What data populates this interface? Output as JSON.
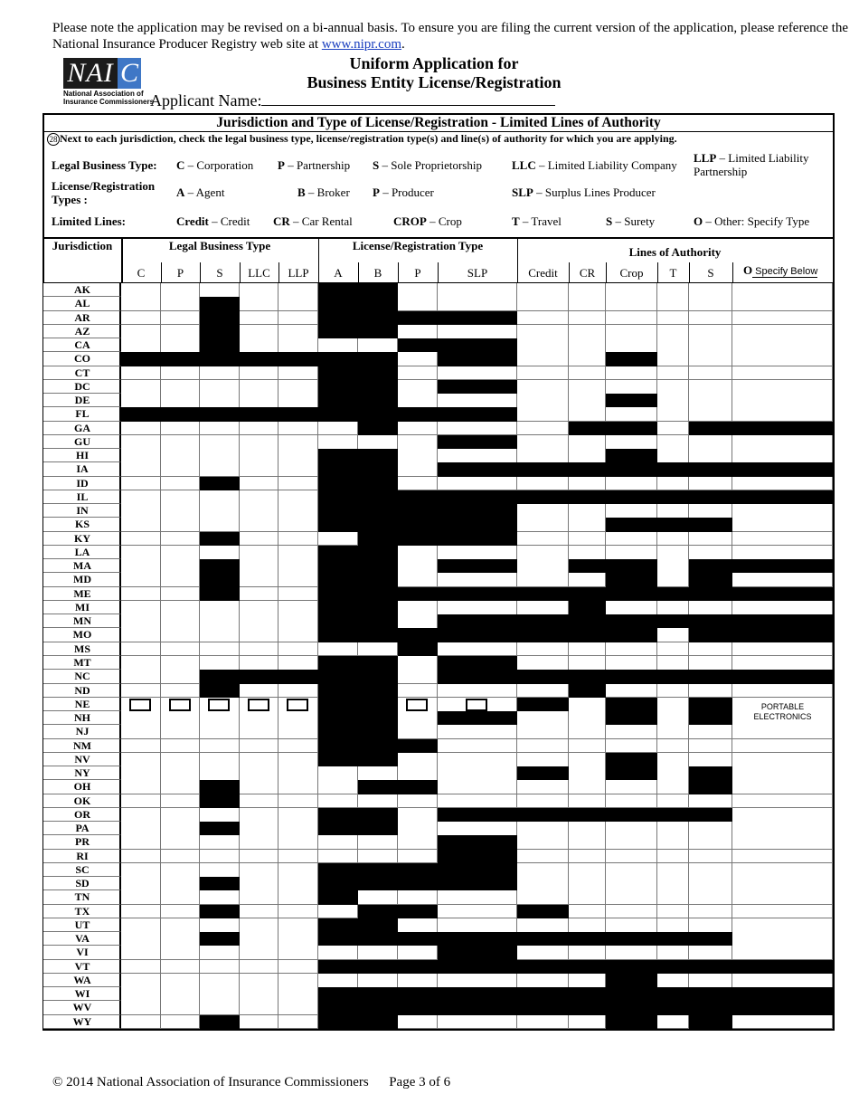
{
  "notice": {
    "text": "Please note the application may be revised on a bi-annual basis. To ensure you are filing the current version of the application, please reference the National Insurance Producer Registry web site at ",
    "link": "www.nipr.com",
    "end": "."
  },
  "logo": {
    "mark_left": "NAI",
    "mark_right": "C",
    "line1": "National Association of",
    "line2": "Insurance Commissioners",
    "colors": {
      "dark": "#1b1b1b",
      "blue": "#3f77c6"
    }
  },
  "header": {
    "title_line1": "Uniform Application for",
    "title_line2": "Business Entity License/Registration",
    "applicant_label": "Applicant Name:"
  },
  "section": {
    "title": "Jurisdiction and Type of License/Registration - Limited Lines of Authority",
    "question_number": "28",
    "instruction": "Next to each jurisdiction, check the legal business type, license/registration type(s) and line(s) of authority for which you are applying."
  },
  "legend": {
    "legal_label": "Legal Business Type:",
    "legal": [
      [
        "C",
        "Corporation"
      ],
      [
        "P",
        "Partnership"
      ],
      [
        "S",
        "Sole Proprietorship"
      ],
      [
        "LLC",
        "Limited Liability Company"
      ],
      [
        "LLP",
        "Limited Liability Partnership"
      ]
    ],
    "license_label": "License/Registration Types :",
    "license": [
      [
        "A",
        "Agent"
      ],
      [
        "B",
        "Broker"
      ],
      [
        "P",
        "Producer"
      ],
      [
        "SLP",
        "Surplus Lines Producer"
      ]
    ],
    "lines_label": "Limited Lines:",
    "lines": [
      [
        "Credit",
        "Credit"
      ],
      [
        "CR",
        "Car Rental"
      ],
      [
        "CROP",
        "Crop"
      ],
      [
        "T",
        "Travel"
      ],
      [
        "S",
        "Surety"
      ],
      [
        "O",
        "Other: Specify Type"
      ]
    ]
  },
  "table": {
    "jurisdiction_header": "Jurisdiction",
    "group_headers": [
      "Legal Business Type",
      "License/Registration Type",
      "Lines of Authority"
    ],
    "columns": [
      "C",
      "P",
      "S",
      "LLC",
      "LLP",
      "A",
      "B",
      "P",
      "SLP",
      "Credit",
      "CR",
      "Crop",
      "T",
      "S",
      "O"
    ],
    "other_note": "Specify Below",
    "ne_nh_other_text": "PORTABLE ELECTRONICS",
    "rows": [
      {
        "j": "AK",
        "blocked": [
          5,
          6
        ]
      },
      {
        "j": "AL",
        "blocked": [
          2,
          5,
          6
        ]
      },
      {
        "j": "AR",
        "blocked": [
          2,
          5,
          6,
          7,
          8
        ]
      },
      {
        "j": "AZ",
        "blocked": [
          2,
          5,
          6
        ]
      },
      {
        "j": "CA",
        "blocked": [
          2,
          7,
          8
        ]
      },
      {
        "j": "CO",
        "blocked": [
          0,
          1,
          2,
          3,
          4,
          5,
          6,
          8,
          11
        ]
      },
      {
        "j": "CT",
        "blocked": [
          5,
          6
        ]
      },
      {
        "j": "DC",
        "blocked": [
          5,
          6,
          8
        ]
      },
      {
        "j": "DE",
        "blocked": [
          5,
          6,
          11
        ]
      },
      {
        "j": "FL",
        "blocked": [
          0,
          1,
          2,
          3,
          4,
          5,
          6,
          7,
          8
        ]
      },
      {
        "j": "GA",
        "blocked": [
          6,
          10,
          11,
          13,
          14
        ]
      },
      {
        "j": "GU",
        "blocked": [
          8
        ]
      },
      {
        "j": "HI",
        "blocked": [
          5,
          6,
          11
        ]
      },
      {
        "j": "IA",
        "blocked": [
          5,
          6,
          8,
          9,
          10,
          11,
          12,
          13,
          14
        ]
      },
      {
        "j": "ID",
        "blocked": [
          2,
          5,
          6
        ]
      },
      {
        "j": "IL",
        "blocked": [
          5,
          6,
          7,
          8,
          9,
          10,
          11,
          12,
          13,
          14
        ]
      },
      {
        "j": "IN",
        "blocked": [
          5,
          6,
          7,
          8
        ]
      },
      {
        "j": "KS",
        "blocked": [
          5,
          6,
          7,
          8,
          11,
          12,
          13
        ]
      },
      {
        "j": "KY",
        "blocked": [
          2,
          6,
          7,
          8
        ]
      },
      {
        "j": "LA",
        "blocked": [
          5,
          6
        ]
      },
      {
        "j": "MA",
        "blocked": [
          2,
          5,
          6,
          8,
          10,
          11,
          13,
          14
        ]
      },
      {
        "j": "MD",
        "blocked": [
          2,
          5,
          6,
          11,
          13
        ]
      },
      {
        "j": "ME",
        "blocked": [
          2,
          5,
          6,
          7,
          8,
          9,
          10,
          11,
          12,
          13,
          14
        ]
      },
      {
        "j": "MI",
        "blocked": [
          5,
          6,
          10
        ]
      },
      {
        "j": "MN",
        "blocked": [
          5,
          6,
          8,
          9,
          10,
          11,
          12,
          13,
          14
        ]
      },
      {
        "j": "MO",
        "blocked": [
          5,
          6,
          7,
          8,
          9,
          10,
          11,
          13,
          14
        ]
      },
      {
        "j": "MS",
        "blocked": [
          7
        ]
      },
      {
        "j": "MT",
        "blocked": [
          5,
          6,
          8
        ]
      },
      {
        "j": "NC",
        "blocked": [
          2,
          3,
          4,
          5,
          6,
          8,
          9,
          10,
          11,
          12,
          13,
          14
        ]
      },
      {
        "j": "ND",
        "blocked": [
          2,
          5,
          6,
          10
        ]
      },
      {
        "j": "NE",
        "blocked": [
          5,
          6,
          9,
          11,
          13
        ]
      },
      {
        "j": "NH",
        "blocked": [
          5,
          6,
          8,
          11,
          13
        ]
      },
      {
        "j": "NJ",
        "blocked": [
          5,
          6
        ]
      },
      {
        "j": "NM",
        "blocked": [
          5,
          6,
          7
        ]
      },
      {
        "j": "NV",
        "blocked": [
          5,
          6,
          11
        ]
      },
      {
        "j": "NY",
        "blocked": [
          9,
          11,
          13
        ]
      },
      {
        "j": "OH",
        "blocked": [
          2,
          6,
          7,
          13
        ]
      },
      {
        "j": "OK",
        "blocked": [
          2
        ]
      },
      {
        "j": "OR",
        "blocked": [
          5,
          6,
          8,
          9,
          10,
          11,
          12,
          13
        ]
      },
      {
        "j": "PA",
        "blocked": [
          2,
          5,
          6
        ]
      },
      {
        "j": "PR",
        "blocked": [
          8
        ]
      },
      {
        "j": "RI",
        "blocked": [
          8
        ]
      },
      {
        "j": "SC",
        "blocked": [
          5,
          6,
          7,
          8
        ]
      },
      {
        "j": "SD",
        "blocked": [
          2,
          5,
          6,
          7,
          8
        ]
      },
      {
        "j": "TN",
        "blocked": [
          5
        ]
      },
      {
        "j": "TX",
        "blocked": [
          2,
          6,
          7,
          9
        ]
      },
      {
        "j": "UT",
        "blocked": [
          5,
          6
        ]
      },
      {
        "j": "VA",
        "blocked": [
          2,
          5,
          6,
          7,
          8,
          9,
          10,
          11,
          12,
          13
        ]
      },
      {
        "j": "VI",
        "blocked": [
          8
        ]
      },
      {
        "j": "VT",
        "blocked": [
          5,
          6,
          7,
          8,
          9,
          10,
          11,
          12,
          13,
          14
        ]
      },
      {
        "j": "WA",
        "blocked": [
          11
        ]
      },
      {
        "j": "WI",
        "blocked": [
          5,
          6,
          7,
          8,
          9,
          10,
          11,
          12,
          13,
          14
        ]
      },
      {
        "j": "WV",
        "blocked": [
          5,
          6,
          7,
          8,
          9,
          10,
          11,
          12,
          13,
          14
        ]
      },
      {
        "j": "WY",
        "blocked": [
          2,
          5,
          6,
          11,
          13
        ]
      }
    ]
  },
  "footer": {
    "copyright": "© 2014 National Association of Insurance Commissioners",
    "page": "Page 3 of 6"
  }
}
